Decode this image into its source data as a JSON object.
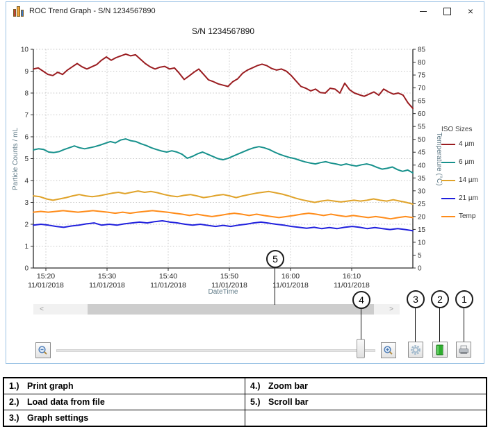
{
  "window": {
    "title": "ROC Trend Graph - S/N 1234567890"
  },
  "icons": {
    "app": "bar-chart-icon",
    "minimize": "minimize-icon",
    "maximize": "maximize-icon",
    "close": "close-icon",
    "settings": "gear-icon",
    "load_data": "green-book-icon",
    "print": "printer-icon",
    "zoom_out": "magnifier-minus-icon",
    "zoom_in": "magnifier-plus-icon"
  },
  "scrollbar": {
    "left_arrow": "<",
    "right_arrow": ">"
  },
  "callouts": {
    "n1": "1",
    "n2": "2",
    "n3": "3",
    "n4": "4",
    "n5": "5"
  },
  "annotation_table": {
    "rows": [
      {
        "left": {
          "num": "1.)",
          "label": "Print graph"
        },
        "right": {
          "num": "4.)",
          "label": "Zoom bar"
        }
      },
      {
        "left": {
          "num": "2.)",
          "label": "Load data from file"
        },
        "right": {
          "num": "5.)",
          "label": "Scroll bar"
        }
      },
      {
        "left": {
          "num": "3.)",
          "label": "Graph settings"
        },
        "right": {
          "num": "",
          "label": ""
        }
      }
    ]
  },
  "chart_data": {
    "type": "line",
    "title": "S/N 1234567890",
    "xlabel": "DateTime",
    "legend_title": "ISO Sizes",
    "legend_position": "right",
    "grid": true,
    "y_left": {
      "min": 0,
      "max": 10,
      "step": 1,
      "label": "Particle Counts / mL"
    },
    "y_right": {
      "min": 0,
      "max": 85,
      "step": 5,
      "label": "Temperature (°C)"
    },
    "x_ticks": [
      {
        "time": "15:20",
        "date": "11/01/2018"
      },
      {
        "time": "15:30",
        "date": "11/01/2018"
      },
      {
        "time": "15:40",
        "date": "11/01/2018"
      },
      {
        "time": "15:50",
        "date": "11/01/2018"
      },
      {
        "time": "16:00",
        "date": "11/01/2018"
      },
      {
        "time": "16:10",
        "date": "11/01/2018"
      }
    ],
    "series": [
      {
        "name": "4 µm",
        "color": "#9a1c20",
        "axis": "left",
        "values": [
          9.1,
          9.15,
          9.0,
          8.85,
          8.8,
          8.95,
          8.85,
          9.05,
          9.2,
          9.35,
          9.2,
          9.1,
          9.2,
          9.3,
          9.5,
          9.65,
          9.5,
          9.62,
          9.7,
          9.78,
          9.7,
          9.75,
          9.55,
          9.35,
          9.2,
          9.1,
          9.18,
          9.22,
          9.1,
          9.15,
          8.9,
          8.62,
          8.78,
          8.95,
          9.1,
          8.85,
          8.6,
          8.52,
          8.42,
          8.36,
          8.3,
          8.52,
          8.65,
          8.9,
          9.05,
          9.15,
          9.25,
          9.32,
          9.25,
          9.12,
          9.05,
          9.1,
          9.0,
          8.8,
          8.55,
          8.3,
          8.22,
          8.1,
          8.18,
          8.02,
          8.0,
          8.22,
          8.18,
          8.0,
          8.45,
          8.15,
          8.0,
          7.92,
          7.85,
          7.95,
          8.05,
          7.9,
          8.18,
          8.05,
          7.95,
          8.0,
          7.9,
          7.55,
          7.3
        ]
      },
      {
        "name": "6 µm",
        "color": "#17918c",
        "axis": "left",
        "values": [
          5.4,
          5.45,
          5.42,
          5.3,
          5.28,
          5.32,
          5.42,
          5.5,
          5.58,
          5.5,
          5.45,
          5.5,
          5.55,
          5.62,
          5.7,
          5.78,
          5.72,
          5.85,
          5.9,
          5.82,
          5.78,
          5.68,
          5.6,
          5.5,
          5.42,
          5.35,
          5.3,
          5.36,
          5.3,
          5.2,
          5.02,
          5.1,
          5.22,
          5.3,
          5.2,
          5.1,
          5.0,
          4.95,
          5.02,
          5.12,
          5.22,
          5.32,
          5.42,
          5.5,
          5.55,
          5.5,
          5.42,
          5.3,
          5.2,
          5.12,
          5.05,
          5.0,
          4.92,
          4.85,
          4.8,
          4.76,
          4.82,
          4.86,
          4.8,
          4.76,
          4.7,
          4.76,
          4.7,
          4.66,
          4.72,
          4.76,
          4.7,
          4.6,
          4.52,
          4.56,
          4.62,
          4.5,
          4.42,
          4.48,
          4.35
        ]
      },
      {
        "name": "14 µm",
        "color": "#e0a32a",
        "axis": "left",
        "values": [
          3.3,
          3.26,
          3.16,
          3.1,
          3.16,
          3.22,
          3.3,
          3.36,
          3.3,
          3.26,
          3.3,
          3.36,
          3.42,
          3.46,
          3.4,
          3.46,
          3.52,
          3.46,
          3.5,
          3.44,
          3.36,
          3.3,
          3.26,
          3.32,
          3.36,
          3.3,
          3.22,
          3.26,
          3.32,
          3.36,
          3.3,
          3.22,
          3.3,
          3.36,
          3.42,
          3.46,
          3.5,
          3.44,
          3.38,
          3.3,
          3.2,
          3.12,
          3.06,
          3.0,
          3.06,
          3.1,
          3.06,
          3.02,
          3.06,
          3.1,
          3.06,
          3.1,
          3.16,
          3.1,
          3.06,
          3.12,
          3.06,
          3.0,
          2.92
        ]
      },
      {
        "name": "21 µm",
        "color": "#2020dd",
        "axis": "left",
        "values": [
          1.96,
          2.0,
          1.96,
          1.9,
          1.86,
          1.92,
          1.96,
          2.02,
          2.06,
          1.96,
          2.0,
          1.96,
          2.02,
          2.06,
          2.1,
          2.06,
          2.12,
          2.16,
          2.1,
          2.06,
          2.0,
          1.96,
          2.0,
          1.95,
          1.9,
          1.95,
          1.9,
          1.96,
          2.0,
          2.06,
          2.1,
          2.05,
          2.0,
          1.96,
          1.9,
          1.86,
          1.82,
          1.86,
          1.8,
          1.85,
          1.8,
          1.86,
          1.9,
          1.86,
          1.8,
          1.85,
          1.8,
          1.76,
          1.8,
          1.76,
          1.7
        ]
      },
      {
        "name": "Temp",
        "color": "#ff8c1a",
        "axis": "right",
        "values": [
          21.7,
          22.0,
          21.7,
          22.0,
          22.3,
          22.0,
          21.7,
          22.0,
          22.3,
          22.0,
          21.7,
          21.3,
          21.7,
          21.3,
          21.7,
          22.0,
          22.3,
          22.0,
          21.7,
          21.3,
          20.9,
          20.4,
          20.9,
          20.4,
          20.0,
          20.4,
          20.9,
          21.3,
          20.9,
          20.4,
          20.9,
          20.4,
          20.0,
          19.6,
          20.0,
          20.4,
          20.9,
          21.3,
          20.9,
          20.4,
          20.9,
          20.4,
          20.0,
          20.4,
          20.0,
          19.6,
          20.0,
          19.6,
          19.1,
          19.6,
          20.0,
          19.6
        ]
      }
    ]
  }
}
